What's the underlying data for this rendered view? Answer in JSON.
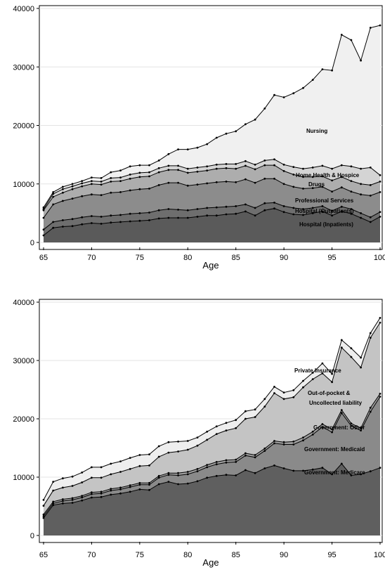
{
  "chart_data": [
    {
      "type": "area",
      "stacked": true,
      "xlabel": "Age",
      "ylabel": "",
      "xlim": [
        65,
        100
      ],
      "ylim": [
        0,
        40000
      ],
      "x_ticks": [
        "65",
        "70",
        "75",
        "80",
        "85",
        "90",
        "95",
        "100"
      ],
      "y_ticks": [
        "0",
        "10000",
        "20000",
        "30000",
        "40000"
      ],
      "grid": true,
      "legend": "inline labels",
      "x": [
        65,
        66,
        67,
        68,
        69,
        70,
        71,
        72,
        73,
        74,
        75,
        76,
        77,
        78,
        79,
        80,
        81,
        82,
        83,
        84,
        85,
        86,
        87,
        88,
        89,
        90,
        91,
        92,
        93,
        94,
        95,
        96,
        97,
        98,
        99,
        100
      ],
      "series": [
        {
          "name": "Hospital (Inpatients)",
          "color": "#5a5a5a",
          "values": [
            1200,
            2500,
            2700,
            2800,
            3100,
            3300,
            3200,
            3400,
            3500,
            3600,
            3700,
            3800,
            4100,
            4200,
            4200,
            4200,
            4400,
            4600,
            4600,
            4800,
            4900,
            5300,
            4600,
            5500,
            5800,
            5200,
            4800,
            4700,
            5000,
            5300,
            4600,
            5300,
            4900,
            4200,
            3500,
            4400
          ]
        },
        {
          "name": "Hospital (Outpatients)",
          "color": "#6e6e6e",
          "values": [
            1000,
            1000,
            1100,
            1200,
            1200,
            1200,
            1200,
            1200,
            1200,
            1300,
            1300,
            1300,
            1400,
            1500,
            1400,
            1300,
            1300,
            1300,
            1400,
            1300,
            1300,
            1200,
            1300,
            1200,
            1000,
            1000,
            1100,
            1000,
            900,
            900,
            800,
            800,
            800,
            800,
            800,
            800
          ]
        },
        {
          "name": "Professional Services",
          "color": "#8c8c8c",
          "values": [
            2000,
            3000,
            3300,
            3500,
            3600,
            3700,
            3700,
            3900,
            3900,
            4000,
            4100,
            4100,
            4300,
            4500,
            4600,
            4200,
            4200,
            4200,
            4300,
            4300,
            4100,
            4300,
            4300,
            4200,
            4100,
            3800,
            3600,
            3500,
            3400,
            3300,
            3300,
            3300,
            3000,
            3200,
            3700,
            3400
          ]
        },
        {
          "name": "Drugs",
          "color": "#adadad",
          "values": [
            1300,
            1300,
            1400,
            1600,
            1700,
            1800,
            1800,
            1900,
            1900,
            2000,
            2100,
            2100,
            2200,
            2200,
            2200,
            2200,
            2200,
            2200,
            2300,
            2300,
            2300,
            2300,
            2300,
            2300,
            2300,
            2200,
            2100,
            2000,
            1900,
            1800,
            1900,
            1800,
            1800,
            1800,
            1800,
            1800
          ]
        },
        {
          "name": "Home Health & Hospice",
          "color": "#d4d4d4",
          "values": [
            200,
            500,
            600,
            500,
            500,
            500,
            500,
            600,
            600,
            700,
            700,
            700,
            700,
            700,
            700,
            700,
            700,
            700,
            700,
            700,
            800,
            800,
            800,
            800,
            1000,
            1100,
            1300,
            1400,
            1600,
            1800,
            2000,
            2000,
            2500,
            2600,
            3000,
            1100
          ]
        },
        {
          "name": "Nursing",
          "color": "#f0f0f0",
          "values": [
            300,
            300,
            400,
            400,
            400,
            600,
            600,
            1000,
            1200,
            1400,
            1300,
            1200,
            1300,
            2000,
            2800,
            3300,
            3400,
            3800,
            4600,
            5200,
            5600,
            6300,
            7700,
            8900,
            11000,
            11500,
            12600,
            13800,
            15000,
            16500,
            16800,
            22300,
            21600,
            18500,
            23900,
            25600
          ]
        }
      ],
      "labels": [
        "Nursing",
        "Home Health & Hospice",
        "Drugs",
        "Professional Services",
        "Hospital (Outpatients)",
        "Hospital (Inpatients)"
      ]
    },
    {
      "type": "area",
      "stacked": true,
      "xlabel": "Age",
      "ylabel": "",
      "xlim": [
        65,
        100
      ],
      "ylim": [
        0,
        40000
      ],
      "x_ticks": [
        "65",
        "70",
        "75",
        "80",
        "85",
        "90",
        "95",
        "100"
      ],
      "y_ticks": [
        "0",
        "10000",
        "20000",
        "30000",
        "40000"
      ],
      "grid": true,
      "legend": "inline labels",
      "x": [
        65,
        66,
        67,
        68,
        69,
        70,
        71,
        72,
        73,
        74,
        75,
        76,
        77,
        78,
        79,
        80,
        81,
        82,
        83,
        84,
        85,
        86,
        87,
        88,
        89,
        90,
        91,
        92,
        93,
        94,
        95,
        96,
        97,
        98,
        99,
        100
      ],
      "series": [
        {
          "name": "Government: Medicare",
          "color": "#5f5f5f",
          "values": [
            3000,
            5200,
            5500,
            5600,
            6000,
            6500,
            6600,
            7000,
            7200,
            7500,
            7900,
            7800,
            8800,
            9200,
            8800,
            8900,
            9300,
            9900,
            10200,
            10400,
            10300,
            11200,
            10700,
            11500,
            12000,
            11500,
            11100,
            11100,
            11300,
            11600,
            10500,
            12300,
            10300,
            10500,
            11000,
            11600
          ]
        },
        {
          "name": "Government: Medicaid",
          "color": "#8a8a8a",
          "values": [
            300,
            300,
            400,
            500,
            500,
            600,
            600,
            700,
            700,
            800,
            800,
            900,
            1100,
            1200,
            1500,
            1600,
            1700,
            1800,
            2000,
            2100,
            2300,
            2500,
            2700,
            3000,
            3800,
            4100,
            4500,
            5200,
            6000,
            7000,
            7200,
            8700,
            8500,
            7500,
            10200,
            12200
          ]
        },
        {
          "name": "Government: Other",
          "color": "#9e9e9e",
          "values": [
            300,
            300,
            300,
            300,
            300,
            300,
            300,
            300,
            300,
            300,
            300,
            300,
            300,
            300,
            400,
            400,
            400,
            400,
            400,
            400,
            400,
            400,
            400,
            400,
            400,
            400,
            500,
            500,
            500,
            500,
            500,
            500,
            400,
            400,
            700,
            500
          ]
        },
        {
          "name": "Out-of-pocket & Uncollected liability",
          "color": "#c4c4c4",
          "values": [
            1500,
            1900,
            2000,
            2100,
            2300,
            2500,
            2400,
            2500,
            2700,
            2800,
            2900,
            3000,
            3300,
            3500,
            3700,
            3800,
            4000,
            4300,
            4800,
            5100,
            5400,
            5900,
            6500,
            7200,
            8200,
            7400,
            7600,
            8600,
            9000,
            8700,
            8100,
            10700,
            11400,
            10400,
            12000,
            12200
          ]
        },
        {
          "name": "Private Insurance",
          "color": "#eeeeee",
          "values": [
            1000,
            1500,
            1600,
            1600,
            1700,
            1800,
            1800,
            1800,
            1800,
            1900,
            1900,
            1900,
            1800,
            1800,
            1700,
            1500,
            1400,
            1400,
            1300,
            1300,
            1400,
            1300,
            1300,
            1300,
            1100,
            1100,
            1200,
            1100,
            1100,
            1700,
            1400,
            1300,
            1500,
            1700,
            800,
            800
          ]
        }
      ],
      "labels": [
        "Private Insurance",
        "Out-of-pocket &",
        "Uncollected liability",
        "Government: Other",
        "Government: Medicaid",
        "Government: Medicare"
      ]
    }
  ]
}
